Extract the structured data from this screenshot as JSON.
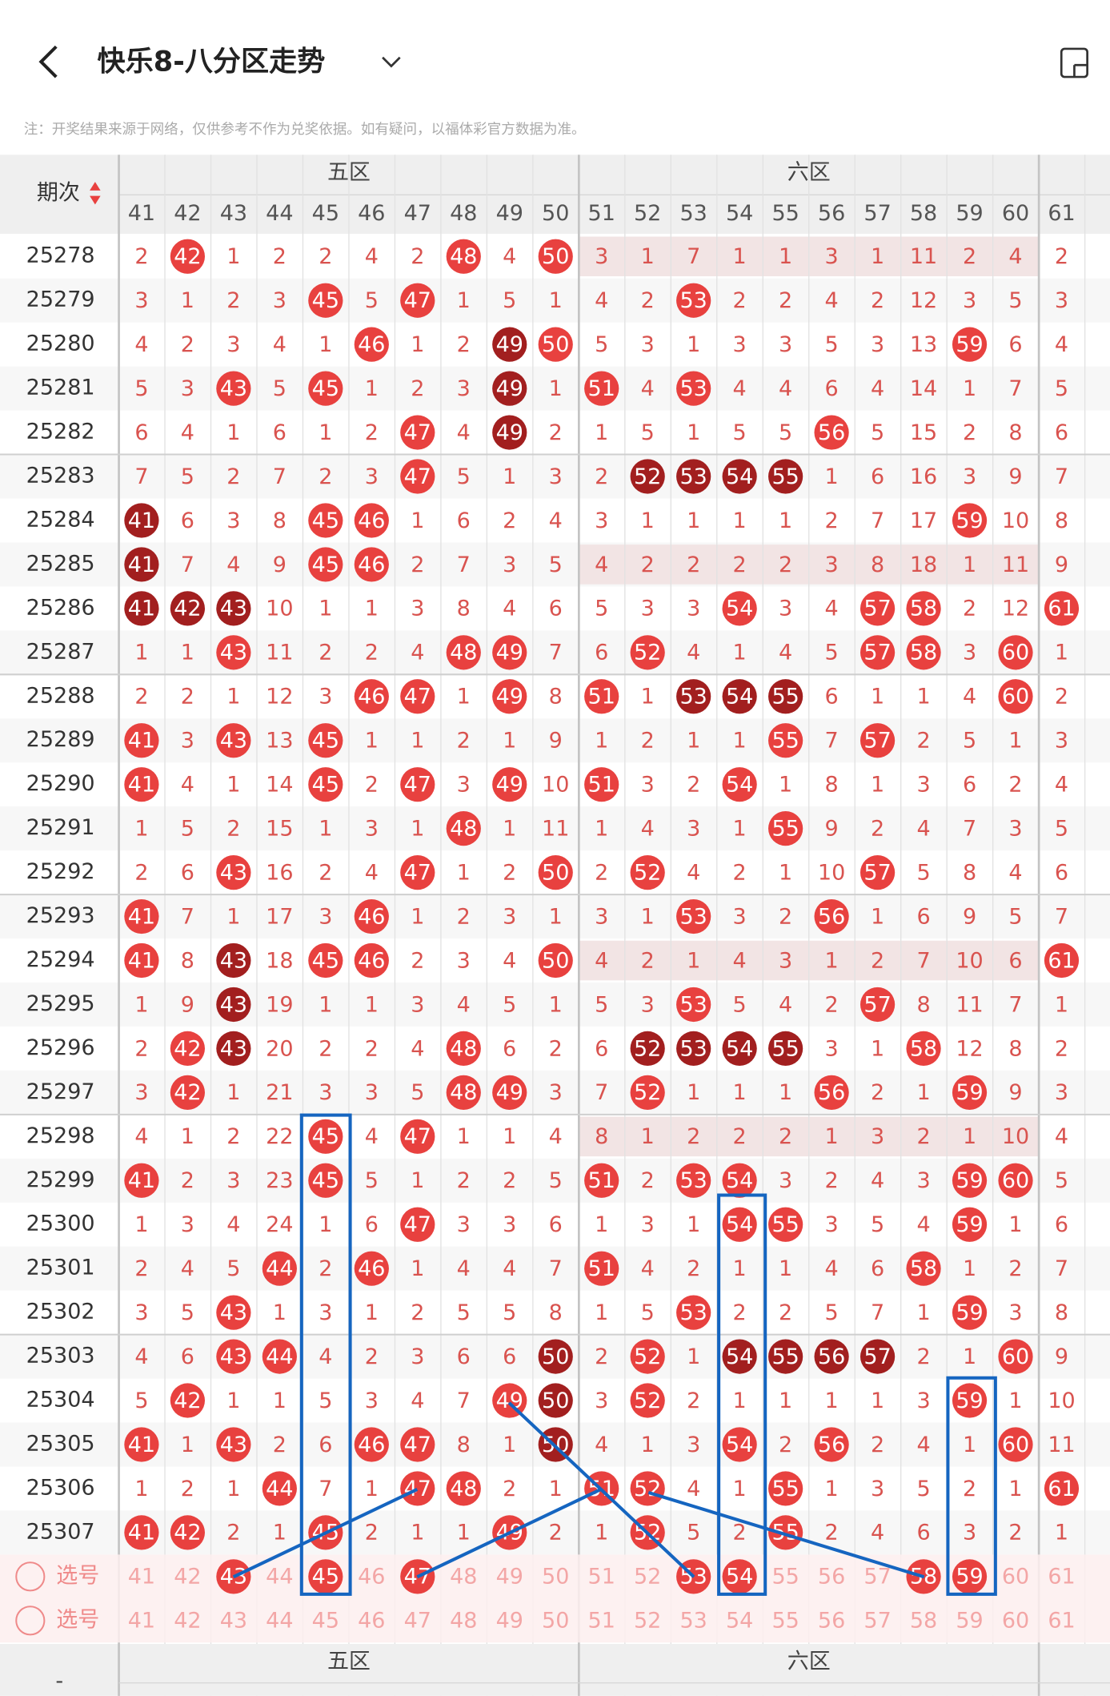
{
  "header": {
    "title": "快乐8-八分区走势"
  },
  "note": "注：开奖结果来源于网络，仅供参考不作为兑奖依据。如有疑问，以福体彩官方数据为准。",
  "table": {
    "period_header": "期次",
    "zones": [
      "五区",
      "六区"
    ],
    "columns": [
      41,
      42,
      43,
      44,
      45,
      46,
      47,
      48,
      49,
      50,
      51,
      52,
      53,
      54,
      55,
      56,
      57,
      58,
      59,
      60,
      61
    ],
    "rows": [
      {
        "period": "25278",
        "highlight": true,
        "cells": [
          2,
          42,
          1,
          2,
          2,
          4,
          2,
          48,
          4,
          50,
          3,
          1,
          7,
          1,
          1,
          3,
          1,
          11,
          2,
          4,
          2
        ],
        "dark": []
      },
      {
        "period": "25279",
        "cells": [
          3,
          1,
          2,
          3,
          45,
          5,
          47,
          1,
          5,
          1,
          4,
          2,
          53,
          2,
          2,
          4,
          2,
          12,
          3,
          5,
          3
        ],
        "dark": []
      },
      {
        "period": "25280",
        "cells": [
          4,
          2,
          3,
          4,
          1,
          46,
          1,
          2,
          49,
          50,
          5,
          3,
          1,
          3,
          3,
          5,
          3,
          13,
          59,
          6,
          4
        ],
        "dark": [
          49
        ]
      },
      {
        "period": "25281",
        "cells": [
          5,
          3,
          43,
          5,
          45,
          1,
          2,
          3,
          49,
          1,
          51,
          4,
          53,
          4,
          4,
          6,
          4,
          14,
          1,
          7,
          5
        ],
        "dark": [
          49
        ]
      },
      {
        "period": "25282",
        "cells": [
          6,
          4,
          1,
          6,
          1,
          2,
          47,
          4,
          49,
          2,
          1,
          5,
          1,
          5,
          5,
          56,
          5,
          15,
          2,
          8,
          6
        ],
        "dark": [
          49
        ]
      },
      {
        "period": "25283",
        "cells": [
          7,
          5,
          2,
          7,
          2,
          3,
          47,
          5,
          1,
          3,
          2,
          52,
          53,
          54,
          55,
          1,
          6,
          16,
          3,
          9,
          7
        ],
        "dark": [
          52,
          53,
          54,
          55
        ]
      },
      {
        "period": "25284",
        "cells": [
          41,
          6,
          3,
          8,
          45,
          46,
          1,
          6,
          2,
          4,
          3,
          1,
          1,
          1,
          1,
          2,
          7,
          17,
          59,
          10,
          8
        ],
        "dark": [
          41
        ]
      },
      {
        "period": "25285",
        "highlight": true,
        "cells": [
          41,
          7,
          4,
          9,
          45,
          46,
          2,
          7,
          3,
          5,
          4,
          2,
          2,
          2,
          2,
          3,
          8,
          18,
          1,
          11,
          9
        ],
        "dark": [
          41
        ]
      },
      {
        "period": "25286",
        "cells": [
          41,
          42,
          43,
          10,
          1,
          1,
          3,
          8,
          4,
          6,
          5,
          3,
          3,
          54,
          3,
          4,
          57,
          58,
          2,
          12,
          61
        ],
        "dark": [
          41,
          42,
          43
        ]
      },
      {
        "period": "25287",
        "cells": [
          1,
          1,
          43,
          11,
          2,
          2,
          4,
          48,
          49,
          7,
          6,
          52,
          4,
          1,
          4,
          5,
          57,
          58,
          3,
          60,
          1
        ],
        "dark": []
      },
      {
        "period": "25288",
        "cells": [
          2,
          2,
          1,
          12,
          3,
          46,
          47,
          1,
          49,
          8,
          51,
          1,
          53,
          54,
          55,
          6,
          1,
          1,
          4,
          60,
          2
        ],
        "dark": [
          53,
          54,
          55
        ]
      },
      {
        "period": "25289",
        "cells": [
          41,
          3,
          43,
          13,
          45,
          1,
          1,
          2,
          1,
          9,
          1,
          2,
          1,
          1,
          55,
          7,
          57,
          2,
          5,
          1,
          3
        ],
        "dark": []
      },
      {
        "period": "25290",
        "cells": [
          41,
          4,
          1,
          14,
          45,
          2,
          47,
          3,
          49,
          10,
          51,
          3,
          2,
          54,
          1,
          8,
          1,
          3,
          6,
          2,
          4
        ],
        "dark": []
      },
      {
        "period": "25291",
        "cells": [
          1,
          5,
          2,
          15,
          1,
          3,
          1,
          48,
          1,
          11,
          1,
          4,
          3,
          1,
          55,
          9,
          2,
          4,
          7,
          3,
          5
        ],
        "dark": []
      },
      {
        "period": "25292",
        "cells": [
          2,
          6,
          43,
          16,
          2,
          4,
          47,
          1,
          2,
          50,
          2,
          52,
          4,
          2,
          1,
          10,
          57,
          5,
          8,
          4,
          6
        ],
        "dark": []
      },
      {
        "period": "25293",
        "cells": [
          41,
          7,
          1,
          17,
          3,
          46,
          1,
          2,
          3,
          1,
          3,
          1,
          53,
          3,
          2,
          56,
          1,
          6,
          9,
          5,
          7
        ],
        "dark": []
      },
      {
        "period": "25294",
        "highlight": true,
        "cells": [
          41,
          8,
          43,
          18,
          45,
          46,
          2,
          3,
          4,
          50,
          4,
          2,
          1,
          4,
          3,
          1,
          2,
          7,
          10,
          6,
          61
        ],
        "dark": [
          43
        ]
      },
      {
        "period": "25295",
        "cells": [
          1,
          9,
          43,
          19,
          1,
          1,
          3,
          4,
          5,
          1,
          5,
          3,
          53,
          5,
          4,
          2,
          57,
          8,
          11,
          7,
          1
        ],
        "dark": [
          43
        ]
      },
      {
        "period": "25296",
        "cells": [
          2,
          42,
          43,
          20,
          2,
          2,
          4,
          48,
          6,
          2,
          6,
          52,
          53,
          54,
          55,
          3,
          1,
          58,
          12,
          8,
          2
        ],
        "dark": [
          43,
          52,
          53,
          54,
          55
        ]
      },
      {
        "period": "25297",
        "cells": [
          3,
          42,
          1,
          21,
          3,
          3,
          5,
          48,
          49,
          3,
          7,
          52,
          1,
          1,
          1,
          56,
          2,
          1,
          59,
          9,
          3
        ],
        "dark": []
      },
      {
        "period": "25298",
        "highlight": true,
        "cells": [
          4,
          1,
          2,
          22,
          45,
          4,
          47,
          1,
          1,
          4,
          8,
          1,
          2,
          2,
          2,
          1,
          3,
          2,
          1,
          10,
          4
        ],
        "dark": []
      },
      {
        "period": "25299",
        "cells": [
          41,
          2,
          3,
          23,
          45,
          5,
          1,
          2,
          2,
          5,
          51,
          2,
          53,
          54,
          3,
          2,
          4,
          3,
          59,
          60,
          5
        ],
        "dark": []
      },
      {
        "period": "25300",
        "cells": [
          1,
          3,
          4,
          24,
          1,
          6,
          47,
          3,
          3,
          6,
          1,
          3,
          1,
          54,
          55,
          3,
          5,
          4,
          59,
          1,
          6
        ],
        "dark": []
      },
      {
        "period": "25301",
        "cells": [
          2,
          4,
          5,
          44,
          2,
          46,
          1,
          4,
          4,
          7,
          51,
          4,
          2,
          1,
          1,
          4,
          6,
          58,
          1,
          2,
          7
        ],
        "dark": []
      },
      {
        "period": "25302",
        "cells": [
          3,
          5,
          43,
          1,
          3,
          1,
          2,
          5,
          5,
          8,
          1,
          5,
          53,
          2,
          2,
          5,
          7,
          1,
          59,
          3,
          8
        ],
        "dark": []
      },
      {
        "period": "25303",
        "cells": [
          4,
          6,
          43,
          44,
          4,
          2,
          3,
          6,
          6,
          50,
          2,
          52,
          1,
          54,
          55,
          56,
          57,
          2,
          1,
          60,
          9
        ],
        "dark": [
          50,
          54,
          55,
          56,
          57
        ]
      },
      {
        "period": "25304",
        "cells": [
          5,
          42,
          1,
          1,
          5,
          3,
          4,
          7,
          49,
          50,
          3,
          52,
          2,
          1,
          1,
          1,
          1,
          3,
          59,
          1,
          10
        ],
        "dark": [
          50
        ]
      },
      {
        "period": "25305",
        "cells": [
          41,
          1,
          43,
          2,
          6,
          46,
          47,
          8,
          1,
          50,
          4,
          1,
          3,
          54,
          2,
          56,
          2,
          4,
          1,
          60,
          11
        ],
        "dark": [
          50
        ]
      },
      {
        "period": "25306",
        "cells": [
          1,
          2,
          1,
          44,
          7,
          1,
          47,
          48,
          2,
          1,
          51,
          52,
          4,
          1,
          55,
          1,
          3,
          5,
          2,
          1,
          61
        ],
        "dark": []
      },
      {
        "period": "25307",
        "cells": [
          41,
          42,
          2,
          1,
          45,
          2,
          1,
          1,
          49,
          2,
          1,
          52,
          5,
          2,
          55,
          2,
          4,
          6,
          3,
          2,
          1
        ],
        "dark": []
      }
    ],
    "select_rows": [
      {
        "label": "选号",
        "selected": [
          43,
          45,
          47,
          53,
          54,
          58,
          59
        ]
      },
      {
        "label": "选号",
        "selected": []
      }
    ],
    "footer_zones": [
      "五区",
      "六区"
    ],
    "footer_label": "-"
  }
}
